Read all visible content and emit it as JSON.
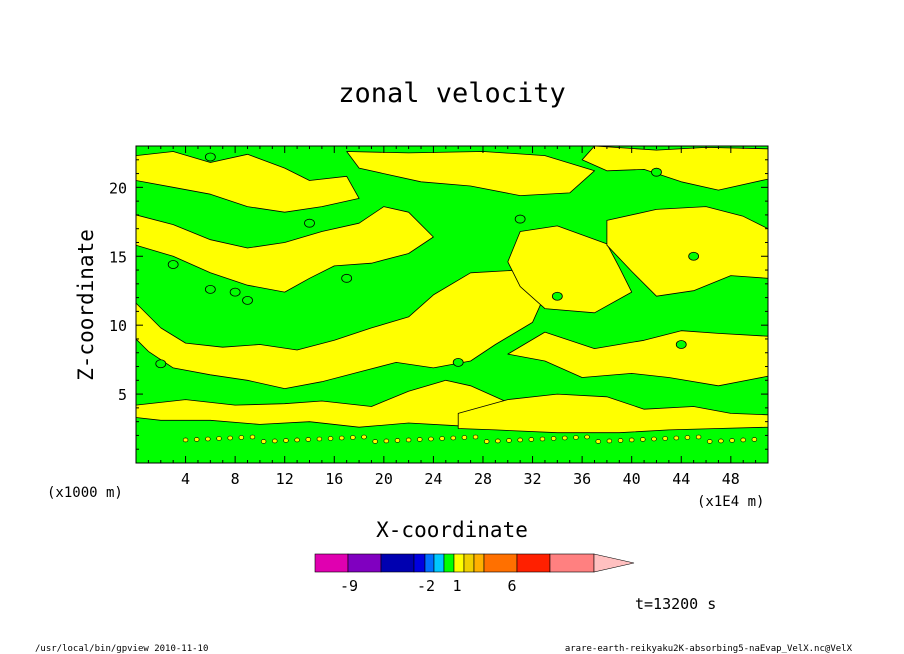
{
  "chart_data": {
    "type": "heatmap",
    "title": "zonal velocity",
    "xlabel": "X-coordinate",
    "ylabel": "Z-coordinate",
    "x_units": "(x1E4 m)",
    "z_units": "(x1000 m)",
    "xlim": [
      0,
      51
    ],
    "ylim": [
      0,
      23
    ],
    "x_ticks": [
      4,
      8,
      12,
      16,
      20,
      24,
      28,
      32,
      36,
      40,
      44,
      48
    ],
    "y_ticks": [
      5,
      10,
      15,
      20
    ],
    "colorbar": {
      "tick_labels": [
        "-9",
        "-2",
        "1",
        "6"
      ],
      "colors": [
        "#e000b0",
        "#8000c0",
        "#0000b0",
        "#0000e0",
        "#0070ff",
        "#00c8ff",
        "#00ff00",
        "#ffff00",
        "#f0d000",
        "#ffb000",
        "#ff7000",
        "#ff2000",
        "#ff8080",
        "#ffc0c0"
      ]
    },
    "region_colors": {
      "green": "#00ff00",
      "yellow": "#ffff00"
    },
    "time_label": "t=13200 s"
  },
  "footer": {
    "left": "/usr/local/bin/gpview  2010-11-10",
    "right": "arare-earth-reikyaku2K-absorbing5-naEvap_VelX.nc@VelX"
  }
}
